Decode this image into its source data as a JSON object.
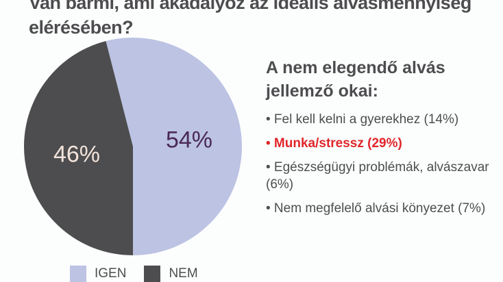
{
  "title": "Van bármi, ami akadályoz az ideális alvásmennyiség elérésében?",
  "chart_data": {
    "type": "pie",
    "title": "Van bármi, ami akadályoz az ideális alvásmennyiség elérésében?",
    "slices": [
      {
        "label": "IGEN",
        "value": 54,
        "display": "54%",
        "color": "#bcc3e3",
        "text_color": "#4a2a55"
      },
      {
        "label": "NEM",
        "value": 46,
        "display": "46%",
        "color": "#4d4d4f",
        "text_color": "#f2e4dc"
      }
    ],
    "legend": [
      "IGEN",
      "NEM"
    ],
    "legend_placement": "bottom"
  },
  "reasons": {
    "title": "A nem elegendő alvás jellemző okai:",
    "items": [
      {
        "text": "• Fel kell kelni a gyerekhez (14%)",
        "highlight": false
      },
      {
        "text": "• Munka/stressz (29%)",
        "highlight": true
      },
      {
        "text": "• Egészségügyi problémák, alvászavar (6%)",
        "highlight": false
      },
      {
        "text": "• Nem megfelelő alvási könyezet (7%)",
        "highlight": false
      }
    ]
  }
}
